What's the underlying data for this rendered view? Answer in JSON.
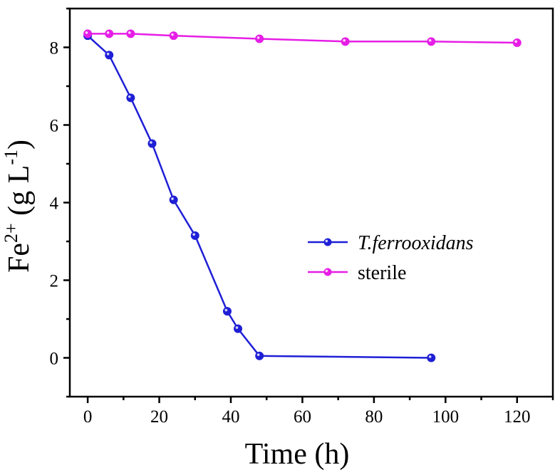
{
  "chart_data": {
    "type": "line",
    "xlabel": "Time (h)",
    "ylabel": {
      "base": "Fe",
      "superscript": "2+",
      "middle": " (g L",
      "unit_superscript": "-1",
      "end": ")"
    },
    "xlim": [
      -5,
      130
    ],
    "ylim": [
      -1,
      9
    ],
    "xticks": [
      0,
      20,
      40,
      60,
      80,
      100,
      120
    ],
    "yticks": [
      0,
      2,
      4,
      6,
      8
    ],
    "grid": false,
    "legend_position": "center-right",
    "series": [
      {
        "name": "T.ferrooxidans",
        "color": "#1f1fd6",
        "italic": true,
        "marker": "circle",
        "x": [
          0,
          6,
          12,
          18,
          24,
          30,
          39,
          42,
          48,
          96
        ],
        "y": [
          8.3,
          7.8,
          6.7,
          5.52,
          4.07,
          3.15,
          1.2,
          0.75,
          0.05,
          0.0
        ]
      },
      {
        "name": "sterile",
        "color": "#e61ee6",
        "italic": false,
        "marker": "circle",
        "x": [
          0,
          6,
          12,
          24,
          48,
          72,
          96,
          120
        ],
        "y": [
          8.35,
          8.35,
          8.35,
          8.3,
          8.22,
          8.15,
          8.15,
          8.12
        ]
      }
    ]
  }
}
